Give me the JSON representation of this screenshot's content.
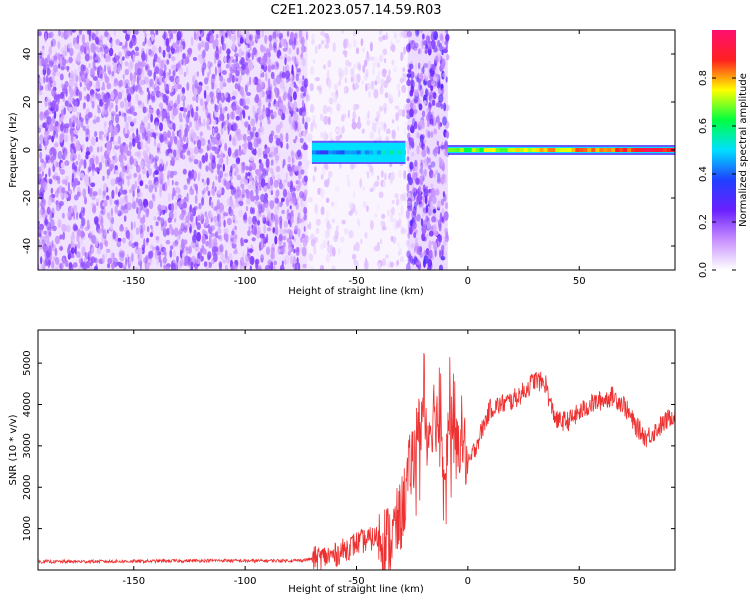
{
  "title": "C2E1.2023.057.14.59.R03",
  "colors": {
    "snr_line": "#ee3030",
    "colormap": [
      "#ffffff",
      "#c890ff",
      "#6a20ff",
      "#2040ff",
      "#00e0ff",
      "#00ff40",
      "#ffff00",
      "#ff2020",
      "#ff1070"
    ]
  },
  "chart_data": [
    {
      "type": "heatmap",
      "title": "",
      "xlabel": "Height of straight line (km)",
      "ylabel": "Frequency (Hz)",
      "xlim": [
        -193,
        93
      ],
      "ylim": [
        -50,
        50
      ],
      "xticks": [
        -150,
        -100,
        -50,
        0,
        50
      ],
      "yticks": [
        -40,
        -20,
        0,
        20,
        40
      ],
      "colorbar": {
        "label": "Normalized spectral amplitude",
        "range": [
          0.0,
          1.0
        ],
        "ticks": [
          0.0,
          0.2,
          0.4,
          0.6,
          0.8
        ]
      },
      "regions": [
        {
          "desc": "broadband noise",
          "x": [
            -193,
            -72
          ],
          "freq": [
            -50,
            50
          ],
          "amplitude": 0.2
        },
        {
          "desc": "sparse noise",
          "x": [
            -72,
            -27
          ],
          "freq": [
            -50,
            50
          ],
          "amplitude": 0.08
        },
        {
          "desc": "signal trace",
          "x": [
            -70,
            -28
          ],
          "freq": [
            -5,
            3
          ],
          "amplitude": 0.5
        },
        {
          "desc": "broadband burst",
          "x": [
            -27,
            -9
          ],
          "freq": [
            -50,
            50
          ],
          "amplitude": 0.25
        },
        {
          "desc": "narrowband carrier",
          "x": [
            -9,
            93
          ],
          "freq": [
            -1,
            1
          ],
          "amplitude": 0.85
        }
      ]
    },
    {
      "type": "line",
      "title": "",
      "xlabel": "Height of straight line (km)",
      "ylabel": "SNR (10 * v/v)",
      "xlim": [
        -193,
        93
      ],
      "ylim": [
        0,
        5800
      ],
      "xticks": [
        -150,
        -100,
        -50,
        0,
        50
      ],
      "yticks": [
        1000,
        2000,
        3000,
        4000,
        5000
      ],
      "series": [
        {
          "x": [
            -193,
            -150,
            -110,
            -100,
            -75,
            -60,
            -50,
            -40,
            -35,
            -30,
            -25,
            -22,
            -20,
            -18,
            -15,
            -12,
            -10,
            -8,
            -5,
            -3,
            0,
            5,
            10,
            15,
            20,
            25,
            30,
            35,
            37,
            40,
            45,
            50,
            55,
            60,
            65,
            70,
            75,
            80,
            85,
            93
          ],
          "y": [
            200,
            210,
            230,
            220,
            230,
            350,
            650,
            800,
            700,
            1300,
            2700,
            3400,
            3800,
            3300,
            3900,
            3200,
            2800,
            3700,
            2800,
            3400,
            2500,
            3200,
            3900,
            4000,
            4100,
            4300,
            4600,
            4500,
            4000,
            3600,
            3600,
            3800,
            4000,
            4100,
            4200,
            4000,
            3500,
            3200,
            3400,
            3800
          ]
        }
      ]
    }
  ]
}
